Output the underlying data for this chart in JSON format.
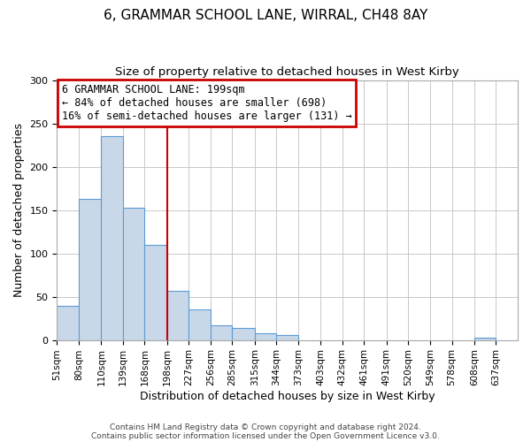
{
  "title": "6, GRAMMAR SCHOOL LANE, WIRRAL, CH48 8AY",
  "subtitle": "Size of property relative to detached houses in West Kirby",
  "xlabel": "Distribution of detached houses by size in West Kirby",
  "ylabel": "Number of detached properties",
  "bar_color": "#c8d8e8",
  "bar_edge_color": "#5b9bd5",
  "background_color": "#ffffff",
  "grid_color": "#c8c8c8",
  "bin_labels": [
    "51sqm",
    "80sqm",
    "110sqm",
    "139sqm",
    "168sqm",
    "198sqm",
    "227sqm",
    "256sqm",
    "285sqm",
    "315sqm",
    "344sqm",
    "373sqm",
    "403sqm",
    "432sqm",
    "461sqm",
    "491sqm",
    "520sqm",
    "549sqm",
    "578sqm",
    "608sqm",
    "637sqm"
  ],
  "bar_heights": [
    39,
    163,
    235,
    153,
    110,
    57,
    35,
    17,
    14,
    8,
    6,
    0,
    0,
    0,
    0,
    0,
    0,
    0,
    0,
    3,
    0
  ],
  "bin_edges": [
    51,
    80,
    110,
    139,
    168,
    198,
    227,
    256,
    285,
    315,
    344,
    373,
    403,
    432,
    461,
    491,
    520,
    549,
    578,
    608,
    637,
    666
  ],
  "ylim": [
    0,
    300
  ],
  "yticks": [
    0,
    50,
    100,
    150,
    200,
    250,
    300
  ],
  "property_line_x": 198,
  "property_line_color": "#cc0000",
  "annotation_text": "6 GRAMMAR SCHOOL LANE: 199sqm\n← 84% of detached houses are smaller (698)\n16% of semi-detached houses are larger (131) →",
  "annotation_box_color": "#cc0000",
  "footer_line1": "Contains HM Land Registry data © Crown copyright and database right 2024.",
  "footer_line2": "Contains public sector information licensed under the Open Government Licence v3.0."
}
